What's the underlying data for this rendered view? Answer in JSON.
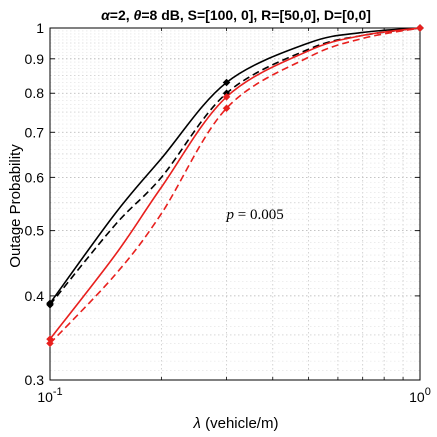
{
  "chart_data": {
    "type": "line",
    "title": {
      "alpha_symbol": "α",
      "alpha_rest": "=2, ",
      "theta_symbol": "θ",
      "theta_rest": "=8 dB, S=[100, 0], R=[50,0], D=[0,0]"
    },
    "xlabel_symbol": "λ",
    "xlabel_rest": " (vehicle/m)",
    "ylabel": "Outage Probability",
    "xscale": "log",
    "yscale": "log",
    "xlim": [
      0.1,
      1
    ],
    "ylim": [
      0.3,
      1
    ],
    "grid": true,
    "x_ticks": [
      {
        "value": 0.1,
        "base": "10",
        "exp": "-1"
      },
      {
        "value": 1,
        "base": "10",
        "exp": "0"
      }
    ],
    "y_ticks": [
      {
        "value": 0.3,
        "label": "0.3"
      },
      {
        "value": 0.4,
        "label": "0.4"
      },
      {
        "value": 0.5,
        "label": "0.5"
      },
      {
        "value": 0.6,
        "label": "0.6"
      },
      {
        "value": 0.7,
        "label": "0.7"
      },
      {
        "value": 0.8,
        "label": "0.8"
      },
      {
        "value": 0.9,
        "label": "0.9"
      },
      {
        "value": 1,
        "label": "1"
      }
    ],
    "annotation": {
      "var": "p",
      "rest": " = 0.005",
      "x": 0.3,
      "y": 0.52
    },
    "series": [
      {
        "color": "#000000",
        "dash": "solid",
        "x": [
          0.1,
          0.15,
          0.2,
          0.3,
          0.5,
          0.7,
          1.0
        ],
        "y": [
          0.39,
          0.53,
          0.64,
          0.83,
          0.95,
          0.985,
          1.0
        ],
        "markers": [
          {
            "x": 0.1,
            "y": 0.39
          },
          {
            "x": 0.3,
            "y": 0.83
          },
          {
            "x": 1.0,
            "y": 1.0
          }
        ]
      },
      {
        "color": "#000000",
        "dash": "dashed",
        "x": [
          0.1,
          0.15,
          0.2,
          0.3,
          0.5,
          0.7,
          1.0
        ],
        "y": [
          0.388,
          0.51,
          0.6,
          0.8,
          0.93,
          0.975,
          1.0
        ],
        "markers": [
          {
            "x": 0.1,
            "y": 0.388
          },
          {
            "x": 0.3,
            "y": 0.8
          },
          {
            "x": 1.0,
            "y": 1.0
          }
        ]
      },
      {
        "color": "#e8201e",
        "dash": "solid",
        "x": [
          0.1,
          0.15,
          0.2,
          0.3,
          0.5,
          0.7,
          1.0
        ],
        "y": [
          0.345,
          0.46,
          0.58,
          0.79,
          0.925,
          0.975,
          1.0
        ],
        "markers": [
          {
            "x": 0.1,
            "y": 0.345
          },
          {
            "x": 0.3,
            "y": 0.79
          },
          {
            "x": 1.0,
            "y": 1.0
          }
        ]
      },
      {
        "color": "#e8201e",
        "dash": "dashed",
        "x": [
          0.1,
          0.15,
          0.2,
          0.3,
          0.5,
          0.7,
          1.0
        ],
        "y": [
          0.34,
          0.43,
          0.53,
          0.76,
          0.905,
          0.965,
          1.0
        ],
        "markers": [
          {
            "x": 0.1,
            "y": 0.34
          },
          {
            "x": 0.3,
            "y": 0.76
          },
          {
            "x": 1.0,
            "y": 1.0
          }
        ]
      }
    ]
  }
}
